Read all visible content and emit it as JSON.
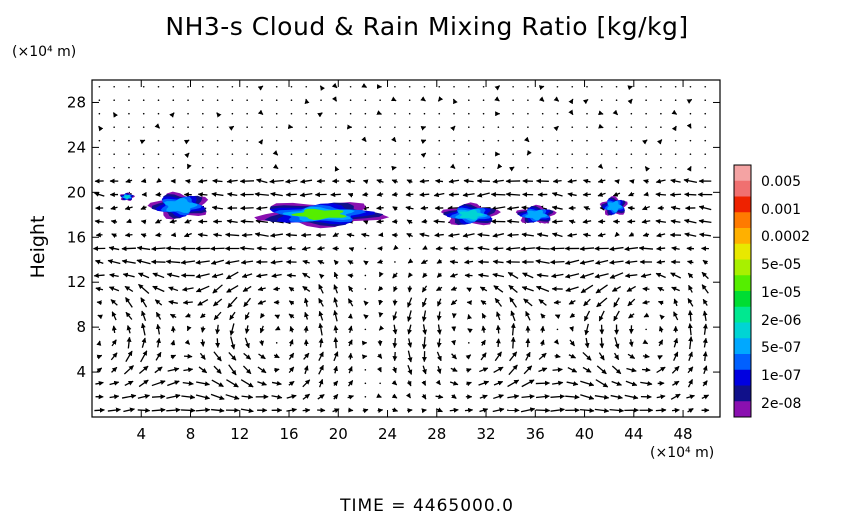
{
  "chart_data": {
    "type": "contour",
    "title": "NH3-s Cloud & Rain Mixing Ratio [kg/kg]",
    "ylabel": "Height",
    "y_unit": "(×10⁴ m)",
    "x_unit": "(×10⁴ m)",
    "xlim": [
      0,
      51
    ],
    "ylim": [
      0,
      30
    ],
    "x_ticks": [
      4,
      8,
      12,
      16,
      20,
      24,
      28,
      32,
      36,
      40,
      44,
      48
    ],
    "y_ticks": [
      4,
      8,
      12,
      16,
      20,
      24,
      28
    ],
    "time_label": "TIME  =  4465000.0",
    "colorbar": {
      "labels": [
        "0.005",
        "0.001",
        "0.0002",
        "5e-05",
        "1e-05",
        "2e-06",
        "5e-07",
        "1e-07",
        "2e-08"
      ],
      "colors": [
        "#f4a3a3",
        "#f07070",
        "#ee2200",
        "#ff7a00",
        "#ffb000",
        "#e8e800",
        "#a8f000",
        "#55ee00",
        "#00dd33",
        "#00e890",
        "#00d4d4",
        "#00a8ff",
        "#0060ff",
        "#0000e0",
        "#10108a",
        "#8a10b0"
      ]
    },
    "cloud_patches": [
      {
        "x": [
          2.2,
          3.5
        ],
        "y": [
          19.2,
          20.0
        ],
        "level": "2e-06"
      },
      {
        "x": [
          4.5,
          9.8
        ],
        "y": [
          17.5,
          20.1
        ],
        "level": "5e-07"
      },
      {
        "x": [
          12.8,
          24.3
        ],
        "y": [
          16.8,
          19.3
        ],
        "level": "1e-05"
      },
      {
        "x": [
          28.2,
          33.3
        ],
        "y": [
          16.9,
          19.1
        ],
        "level": "2e-06"
      },
      {
        "x": [
          34.3,
          37.8
        ],
        "y": [
          17.1,
          18.9
        ],
        "level": "5e-07"
      },
      {
        "x": [
          41.2,
          43.6
        ],
        "y": [
          17.8,
          19.7
        ],
        "level": "5e-07"
      }
    ]
  }
}
